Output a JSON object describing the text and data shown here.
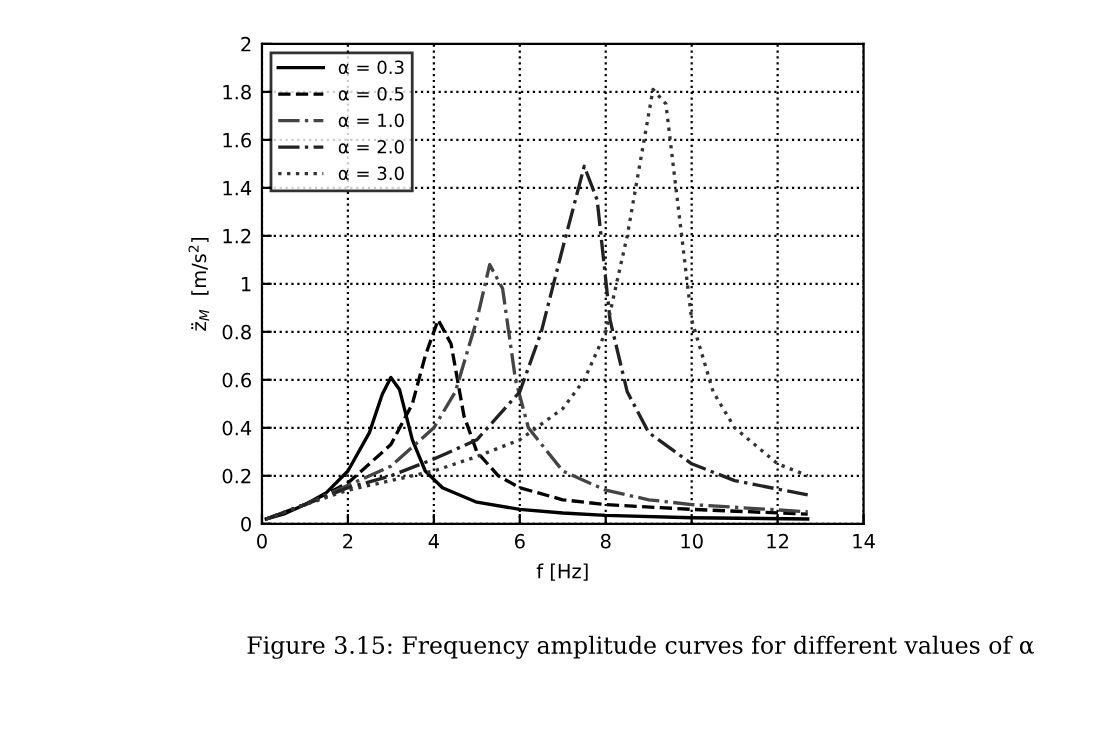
{
  "chart_data": {
    "type": "line",
    "xlabel": "f [Hz]",
    "ylabel": "z̈$_{M}$  [m/s$^{2}$]",
    "xlim": [
      0,
      14
    ],
    "xticks": [
      0,
      2,
      4,
      6,
      8,
      10,
      12,
      14
    ],
    "ylim": [
      0,
      2
    ],
    "yticks": [
      0,
      0.2,
      0.4,
      0.6,
      0.8,
      1,
      1.2,
      1.4,
      1.6,
      1.8,
      2
    ],
    "grid": true,
    "legend": "top left",
    "annotations": [
      "Figure 3.15: Frequency amplitude curves for different values of α"
    ],
    "series": [
      {
        "name": "α = 0.3",
        "color": "#000000",
        "line_style": "solid",
        "x": [
          0.1,
          0.5,
          1,
          1.5,
          2,
          2.5,
          2.8,
          3.0,
          3.2,
          3.5,
          3.8,
          4.2,
          5,
          6,
          7,
          8,
          10,
          12.7
        ],
        "values": [
          0.02,
          0.04,
          0.08,
          0.13,
          0.22,
          0.38,
          0.54,
          0.61,
          0.56,
          0.35,
          0.22,
          0.15,
          0.09,
          0.06,
          0.045,
          0.035,
          0.025,
          0.02
        ]
      },
      {
        "name": "α = 0.5",
        "color": "#000000",
        "line_style": "dashed",
        "x": [
          0.1,
          1,
          2,
          3,
          3.5,
          3.8,
          4.1,
          4.4,
          4.7,
          5,
          5.5,
          6,
          7,
          8,
          10,
          12.7
        ],
        "values": [
          0.02,
          0.08,
          0.17,
          0.33,
          0.5,
          0.7,
          0.85,
          0.75,
          0.45,
          0.3,
          0.2,
          0.15,
          0.1,
          0.08,
          0.06,
          0.04
        ]
      },
      {
        "name": "α = 1.0",
        "color": "#444444",
        "line_style": "dashdot",
        "x": [
          0.1,
          1,
          2,
          3,
          4,
          4.5,
          5,
          5.3,
          5.6,
          5.9,
          6.2,
          7,
          8,
          9,
          10,
          12.7
        ],
        "values": [
          0.02,
          0.08,
          0.16,
          0.24,
          0.4,
          0.55,
          0.85,
          1.08,
          0.98,
          0.6,
          0.4,
          0.22,
          0.14,
          0.1,
          0.08,
          0.05
        ]
      },
      {
        "name": "α = 2.0",
        "color": "#222222",
        "line_style": "dashdot",
        "x": [
          0.1,
          1,
          2,
          3,
          4,
          5,
          6,
          6.5,
          7,
          7.5,
          7.8,
          8.1,
          8.5,
          9,
          10,
          11,
          12.7
        ],
        "values": [
          0.02,
          0.08,
          0.15,
          0.2,
          0.27,
          0.35,
          0.55,
          0.8,
          1.15,
          1.49,
          1.35,
          0.85,
          0.55,
          0.38,
          0.25,
          0.18,
          0.12
        ]
      },
      {
        "name": "α = 3.0",
        "color": "#333333",
        "line_style": "dotted",
        "x": [
          0.1,
          1,
          2,
          3,
          4,
          5,
          6,
          7,
          7.5,
          8,
          8.5,
          9.1,
          9.4,
          9.7,
          10,
          10.5,
          11,
          12,
          12.7
        ],
        "values": [
          0.02,
          0.08,
          0.14,
          0.18,
          0.22,
          0.28,
          0.35,
          0.48,
          0.6,
          0.8,
          1.2,
          1.81,
          1.75,
          1.3,
          0.85,
          0.55,
          0.4,
          0.25,
          0.2
        ]
      }
    ]
  }
}
